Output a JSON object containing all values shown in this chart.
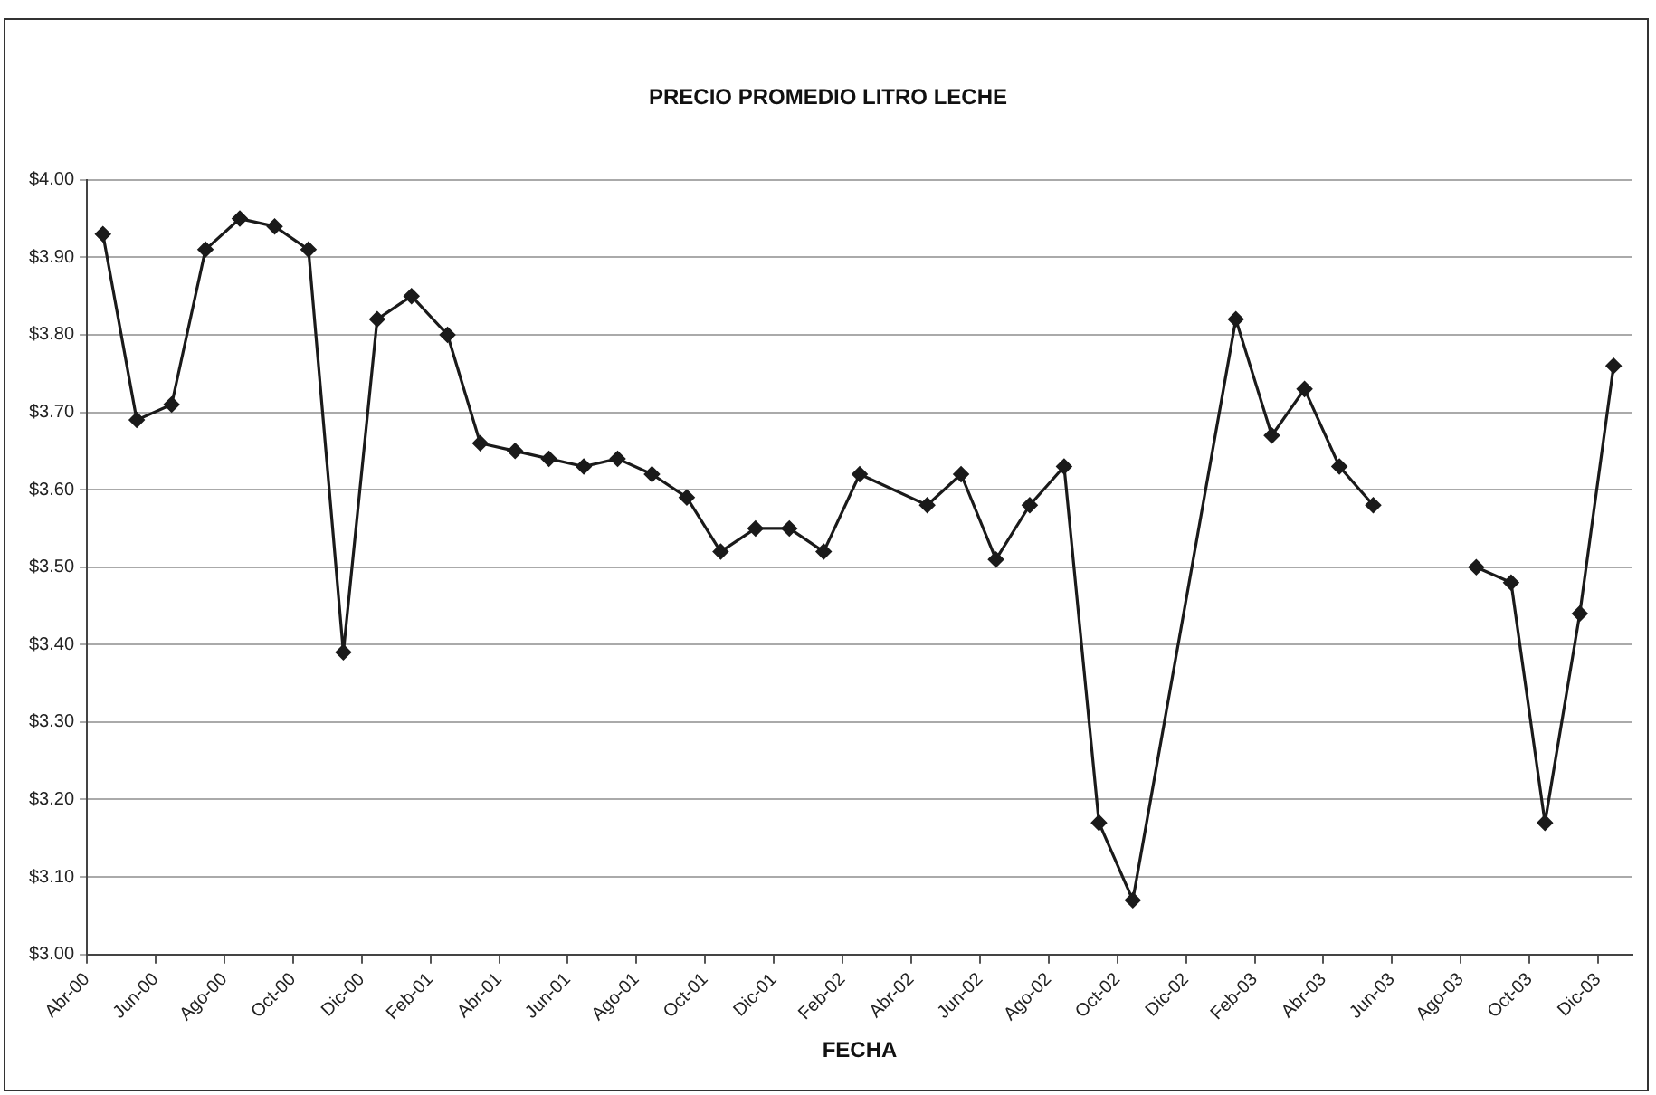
{
  "chart_data": {
    "type": "line",
    "title": "PRECIO PROMEDIO LITRO LECHE",
    "xlabel": "FECHA",
    "x": [
      "2000-04-15",
      "2000-05-15",
      "2000-06-15",
      "2000-07-15",
      "2000-08-15",
      "2000-09-15",
      "2000-10-15",
      "2000-11-15",
      "2000-12-15",
      "2001-01-15",
      "2001-02-15",
      "2001-03-15",
      "2001-04-15",
      "2001-05-15",
      "2001-06-15",
      "2001-07-15",
      "2001-08-15",
      "2001-09-15",
      "2001-10-15",
      "2001-11-15",
      "2001-12-15",
      "2002-01-15",
      "2002-02-15",
      "2002-04-15",
      "2002-05-15",
      "2002-06-15",
      "2002-07-15",
      "2002-08-15",
      "2002-09-15",
      "2002-10-15",
      "2003-01-15",
      "2003-02-15",
      "2003-03-15",
      "2003-04-15",
      "2003-05-15",
      "2003-06-15",
      "2003-08-15",
      "2003-09-15",
      "2003-10-15",
      "2003-11-15",
      "2003-12-15"
    ],
    "series": [
      {
        "color": "#1a1a1a",
        "values": [
          3.93,
          3.69,
          3.71,
          3.91,
          3.95,
          3.94,
          3.91,
          3.39,
          3.82,
          3.85,
          3.8,
          3.66,
          3.65,
          3.64,
          3.63,
          3.64,
          3.62,
          3.59,
          3.52,
          3.55,
          3.55,
          3.52,
          3.62,
          3.58,
          3.62,
          3.51,
          3.58,
          3.63,
          3.17,
          3.07,
          3.82,
          3.67,
          3.73,
          3.63,
          3.58,
          null,
          3.5,
          3.48,
          3.17,
          3.44,
          3.76
        ]
      }
    ],
    "ylim": [
      3,
      4
    ],
    "yticks": [
      {
        "value": 3,
        "label": "$3.00"
      },
      {
        "value": 3.1,
        "label": "$3.10"
      },
      {
        "value": 3.2,
        "label": "$3.20"
      },
      {
        "value": 3.3,
        "label": "$3.30"
      },
      {
        "value": 3.4,
        "label": "$3.40"
      },
      {
        "value": 3.5,
        "label": "$3.50"
      },
      {
        "value": 3.6,
        "label": "$3.60"
      },
      {
        "value": 3.7,
        "label": "$3.70"
      },
      {
        "value": 3.8,
        "label": "$3.80"
      },
      {
        "value": 3.9,
        "label": "$3.90"
      },
      {
        "value": 4,
        "label": "$4.00"
      }
    ],
    "xlim": [
      "2000-04",
      "2004-01"
    ],
    "xticks": [
      {
        "value": "2000-04",
        "label": "Abr-00"
      },
      {
        "value": "2000-06",
        "label": "Jun-00"
      },
      {
        "value": "2000-08",
        "label": "Ago-00"
      },
      {
        "value": "2000-10",
        "label": "Oct-00"
      },
      {
        "value": "2000-12",
        "label": "Dic-00"
      },
      {
        "value": "2001-02",
        "label": "Feb-01"
      },
      {
        "value": "2001-04",
        "label": "Abr-01"
      },
      {
        "value": "2001-06",
        "label": "Jun-01"
      },
      {
        "value": "2001-08",
        "label": "Ago-01"
      },
      {
        "value": "2001-10",
        "label": "Oct-01"
      },
      {
        "value": "2001-12",
        "label": "Dic-01"
      },
      {
        "value": "2002-02",
        "label": "Feb-02"
      },
      {
        "value": "2002-04",
        "label": "Abr-02"
      },
      {
        "value": "2002-06",
        "label": "Jun-02"
      },
      {
        "value": "2002-08",
        "label": "Ago-02"
      },
      {
        "value": "2002-10",
        "label": "Oct-02"
      },
      {
        "value": "2002-12",
        "label": "Dic-02"
      },
      {
        "value": "2003-02",
        "label": "Feb-03"
      },
      {
        "value": "2003-04",
        "label": "Abr-03"
      },
      {
        "value": "2003-06",
        "label": "Jun-03"
      },
      {
        "value": "2003-08",
        "label": "Ago-03"
      },
      {
        "value": "2003-10",
        "label": "Oct-03"
      },
      {
        "value": "2003-12",
        "label": "Dic-03"
      }
    ],
    "grid": "y",
    "marker": "diamond",
    "line_style": "solid",
    "legend": false
  }
}
